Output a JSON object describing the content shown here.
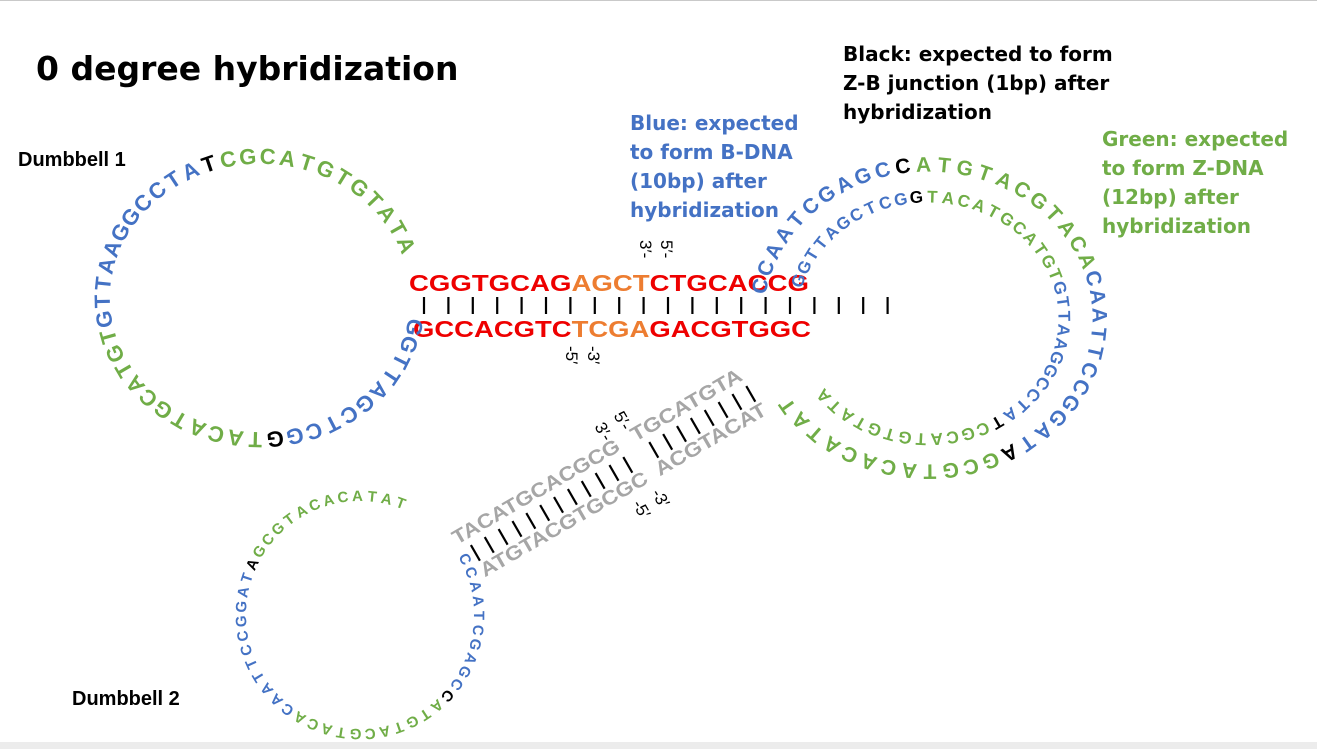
{
  "title": "0 degree hybridization",
  "labels": {
    "dumbbell1": "Dumbbell 1",
    "dumbbell2": "Dumbbell 2"
  },
  "annotations": {
    "blue": [
      "Blue: expected",
      "to form B-DNA",
      "(10bp) after",
      "hybridization"
    ],
    "black": [
      "Black: expected to form",
      "Z-B junction (1bp) after",
      "hybridization"
    ],
    "green": [
      "Green: expected",
      "to form Z-DNA",
      "(12bp) after",
      "hybridization"
    ]
  },
  "colors": {
    "blue": "#4472c4",
    "green": "#70ad47",
    "black": "#000000",
    "red": "#ee0000",
    "orange": "#ed7d31",
    "gray": "#a6a6a6"
  },
  "stem_center": {
    "top": [
      {
        "t": "CGGTGCAG",
        "c": "red"
      },
      {
        "t": "AGCT",
        "c": "orange"
      },
      {
        "t": "CTGCACCG",
        "c": "red"
      }
    ],
    "bottom": [
      {
        "t": "GCCACGTC",
        "c": "red"
      },
      {
        "t": "TCGA",
        "c": "orange"
      },
      {
        "t": "GACGTGGC",
        "c": "red"
      }
    ],
    "top_marks": [
      "3′-",
      "5′-"
    ],
    "bottom_marks": [
      "-5′",
      "-3′"
    ]
  },
  "stem_diagonal": {
    "upper_left": "TACATGCACGCG",
    "upper_right": "TGCATGTA",
    "lower_left": "ATGTACGTGCGC",
    "lower_right": "ACGTACAT",
    "upper_marks": [
      "3′-",
      "5′-"
    ],
    "lower_marks": [
      "-5′",
      "-3′"
    ]
  },
  "loop_left": [
    {
      "t": "GGTTAGCTCG",
      "c": "blue"
    },
    {
      "t": "G",
      "c": "black"
    },
    {
      "t": "TACATGCATGTGTTAAGGCCTA",
      "c": "green_blue"
    },
    {
      "t": "T",
      "c": "black"
    },
    {
      "t": "CGCATGTGTATA",
      "c": "green"
    }
  ],
  "loop_right_outer": [
    {
      "t": "CCAATCGAGC",
      "c": "blue"
    },
    {
      "t": "C",
      "c": "black"
    },
    {
      "t": "ATGTACGTACACAATTCCGGAT",
      "c": "green_blue"
    },
    {
      "t": "A",
      "c": "black"
    },
    {
      "t": "GCGTACACATAT",
      "c": "green"
    }
  ],
  "loop_right_inner": [
    {
      "t": "GGTTAGCTCG",
      "c": "blue"
    },
    {
      "t": "G",
      "c": "black"
    },
    {
      "t": "TACATGCATGTGTTAAGGCCTA",
      "c": "green_blue"
    },
    {
      "t": "T",
      "c": "black"
    },
    {
      "t": "CGCATGTGTATA",
      "c": "green"
    }
  ],
  "loop_bottom": [
    {
      "t": "CCAATCGAGC",
      "c": "blue"
    },
    {
      "t": "C",
      "c": "black"
    },
    {
      "t": "ATGTACGTACACAATTCCGGAT",
      "c": "green_blue"
    },
    {
      "t": "A",
      "c": "black"
    },
    {
      "t": "GCGTACACATAT",
      "c": "green"
    }
  ]
}
